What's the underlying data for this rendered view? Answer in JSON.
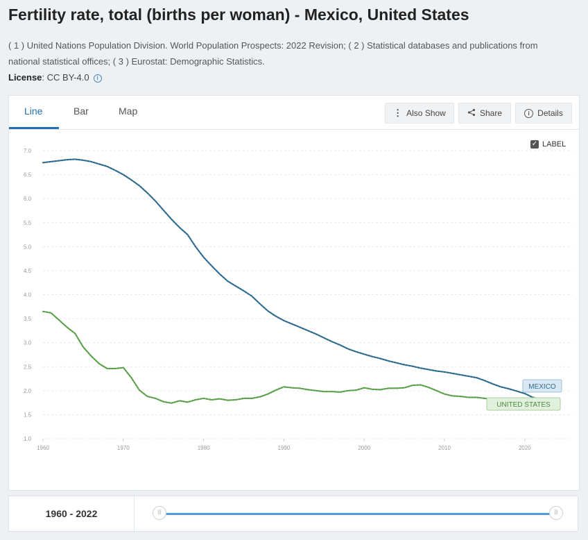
{
  "header": {
    "title": "Fertility rate, total (births per woman) - Mexico, United States",
    "sources": "( 1 ) United Nations Population Division. World Population Prospects: 2022 Revision; ( 2 ) Statistical databases and publications from national statistical offices; ( 3 ) Eurostat: Demographic Statistics.",
    "license_label": "License",
    "license_value": ": CC BY-4.0"
  },
  "tabs": {
    "line": "Line",
    "bar": "Bar",
    "map": "Map"
  },
  "toolbar": {
    "also_show": "Also Show",
    "share": "Share",
    "details": "Details"
  },
  "label_toggle": "LABEL",
  "range": {
    "text": "1960 - 2022"
  },
  "colors": {
    "mexico": "#2d6a8e",
    "us": "#5aa04a",
    "accent": "#1f6fb0",
    "slider": "#4a9bd8"
  },
  "chart_data": {
    "type": "line",
    "title": "Fertility rate, total (births per woman) - Mexico, United States",
    "xlim": [
      1960,
      2022
    ],
    "ylim": [
      1.0,
      7.0
    ],
    "yticks": [
      "1.0",
      "1.5",
      "2.0",
      "2.5",
      "3.0",
      "3.5",
      "4.0",
      "4.5",
      "5.0",
      "5.5",
      "6.0",
      "6.5",
      "7.0"
    ],
    "xticks": [
      "1960",
      "1970",
      "1980",
      "1990",
      "2000",
      "2010",
      "2020"
    ],
    "grid": true,
    "x": [
      1960,
      1961,
      1962,
      1963,
      1964,
      1965,
      1966,
      1967,
      1968,
      1969,
      1970,
      1971,
      1972,
      1973,
      1974,
      1975,
      1976,
      1977,
      1978,
      1979,
      1980,
      1981,
      1982,
      1983,
      1984,
      1985,
      1986,
      1987,
      1988,
      1989,
      1990,
      1991,
      1992,
      1993,
      1994,
      1995,
      1996,
      1997,
      1998,
      1999,
      2000,
      2001,
      2002,
      2003,
      2004,
      2005,
      2006,
      2007,
      2008,
      2009,
      2010,
      2011,
      2012,
      2013,
      2014,
      2015,
      2016,
      2017,
      2018,
      2019,
      2020,
      2021,
      2022
    ],
    "series": [
      {
        "name": "MEXICO",
        "values": [
          6.75,
          6.77,
          6.79,
          6.81,
          6.82,
          6.8,
          6.77,
          6.72,
          6.67,
          6.59,
          6.5,
          6.39,
          6.27,
          6.12,
          5.95,
          5.76,
          5.57,
          5.4,
          5.25,
          5.0,
          4.78,
          4.6,
          4.43,
          4.28,
          4.18,
          4.08,
          3.97,
          3.81,
          3.66,
          3.55,
          3.46,
          3.39,
          3.32,
          3.25,
          3.18,
          3.1,
          3.02,
          2.95,
          2.87,
          2.81,
          2.76,
          2.71,
          2.67,
          2.62,
          2.58,
          2.54,
          2.51,
          2.47,
          2.44,
          2.41,
          2.39,
          2.36,
          2.33,
          2.3,
          2.27,
          2.21,
          2.14,
          2.08,
          2.04,
          1.99,
          1.94,
          1.86,
          1.82
        ]
      },
      {
        "name": "UNITED STATES",
        "values": [
          3.65,
          3.62,
          3.47,
          3.32,
          3.19,
          2.91,
          2.72,
          2.56,
          2.46,
          2.46,
          2.48,
          2.27,
          2.01,
          1.88,
          1.84,
          1.77,
          1.74,
          1.79,
          1.76,
          1.81,
          1.84,
          1.81,
          1.83,
          1.8,
          1.81,
          1.84,
          1.84,
          1.87,
          1.93,
          2.01,
          2.08,
          2.06,
          2.05,
          2.02,
          2.0,
          1.98,
          1.98,
          1.97,
          2.0,
          2.01,
          2.06,
          2.03,
          2.02,
          2.05,
          2.05,
          2.06,
          2.11,
          2.12,
          2.07,
          2.0,
          1.93,
          1.89,
          1.88,
          1.86,
          1.86,
          1.84,
          1.82,
          1.77,
          1.73,
          1.71,
          1.64,
          1.66,
          1.67
        ]
      }
    ]
  }
}
